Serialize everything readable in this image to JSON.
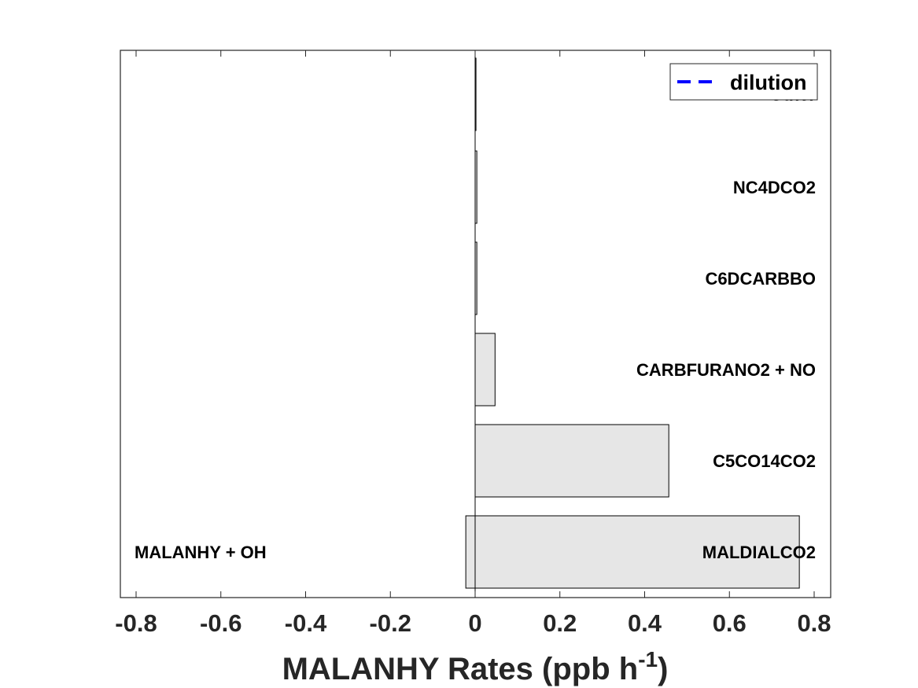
{
  "chart_data": {
    "type": "bar",
    "orientation": "horizontal",
    "stacked": true,
    "xlabel_main": "MALANHY Rates (ppb h",
    "xlabel_sup": "-1",
    "xlabel_close": ")",
    "xlim": [
      -0.8,
      0.8
    ],
    "xticks": [
      "-0.8",
      "-0.6",
      "-0.4",
      "-0.2",
      "0",
      "0.2",
      "0.4",
      "0.6",
      "0.8"
    ],
    "grid": false,
    "legend_position": "top-right",
    "legend": [
      {
        "label": "dilution",
        "style": "dashed",
        "color": "#0000ff"
      }
    ],
    "bar_fill": "#e6e6e6",
    "bar_edge": "#000000",
    "bars": [
      {
        "label": "Other",
        "positive": 0.002,
        "negative": 0,
        "left_label": ""
      },
      {
        "label": "NC4DCO2",
        "positive": 0.004,
        "negative": 0,
        "left_label": ""
      },
      {
        "label": "C6DCARBBO",
        "positive": 0.004,
        "negative": 0,
        "left_label": ""
      },
      {
        "label": "CARBFURANO2 + NO",
        "positive": 0.047,
        "negative": 0,
        "left_label": ""
      },
      {
        "label": "C5CO14CO2",
        "positive": 0.457,
        "negative": 0,
        "left_label": ""
      },
      {
        "label": "MALDIALCO2",
        "positive": 0.765,
        "negative": -0.022,
        "left_label": "MALANHY + OH"
      }
    ]
  }
}
